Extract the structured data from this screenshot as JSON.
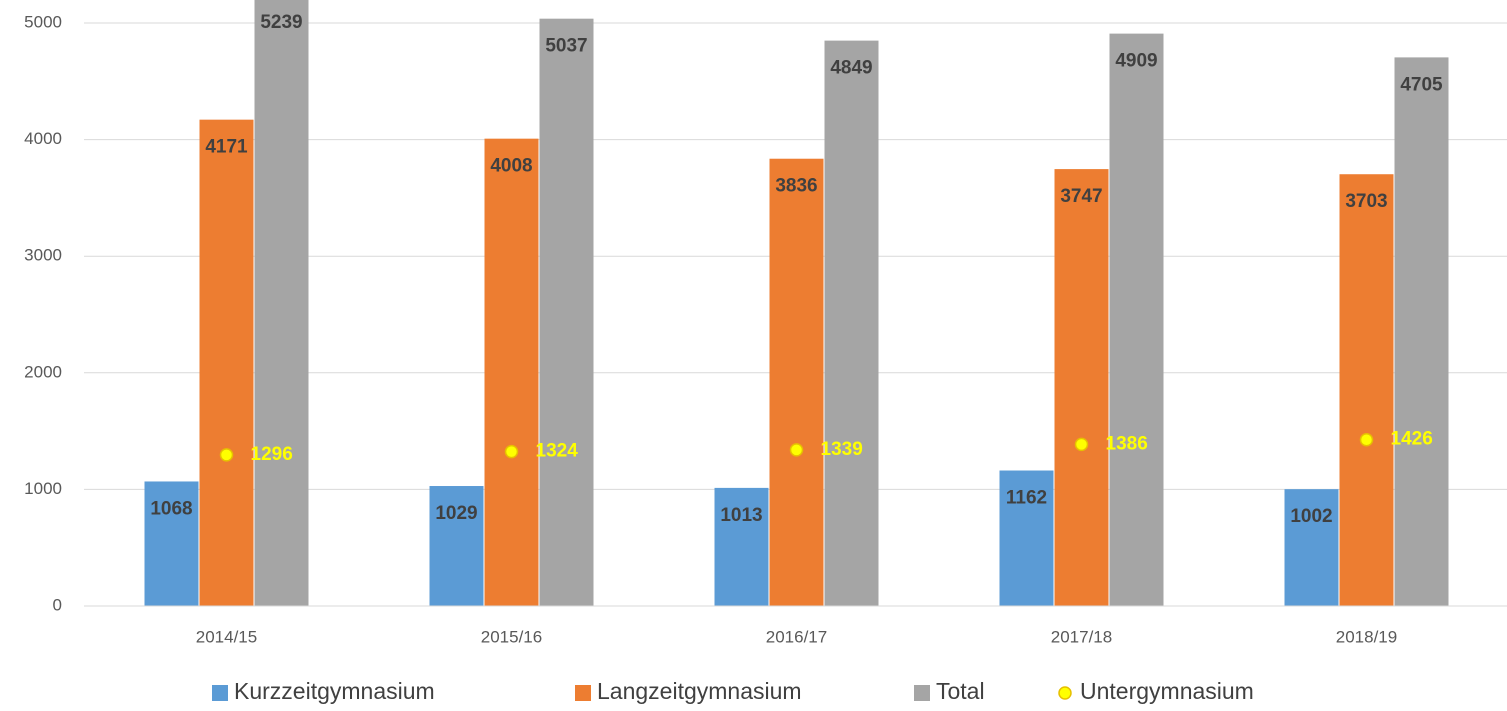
{
  "chart_data": {
    "type": "bar",
    "categories": [
      "2014/15",
      "2015/16",
      "2016/17",
      "2017/18",
      "2018/19"
    ],
    "series": [
      {
        "name": "Kurzzeitgymnasium",
        "color": "#5b9bd5",
        "values": [
          1068,
          1029,
          1013,
          1162,
          1002
        ]
      },
      {
        "name": "Langzeitgymnasium",
        "color": "#ed7d31",
        "values": [
          4171,
          4008,
          3836,
          3747,
          3703
        ]
      },
      {
        "name": "Total",
        "color": "#a5a5a5",
        "values": [
          5239,
          5037,
          4849,
          4909,
          4705
        ]
      },
      {
        "name": "Untergymnasium",
        "color": "#ffff00",
        "type": "scatter",
        "values": [
          1296,
          1324,
          1339,
          1386,
          1426
        ]
      }
    ],
    "ylim": [
      0,
      5000
    ],
    "yticks": [
      0,
      1000,
      2000,
      3000,
      4000,
      5000
    ],
    "grid": true,
    "legend": "bottom"
  }
}
